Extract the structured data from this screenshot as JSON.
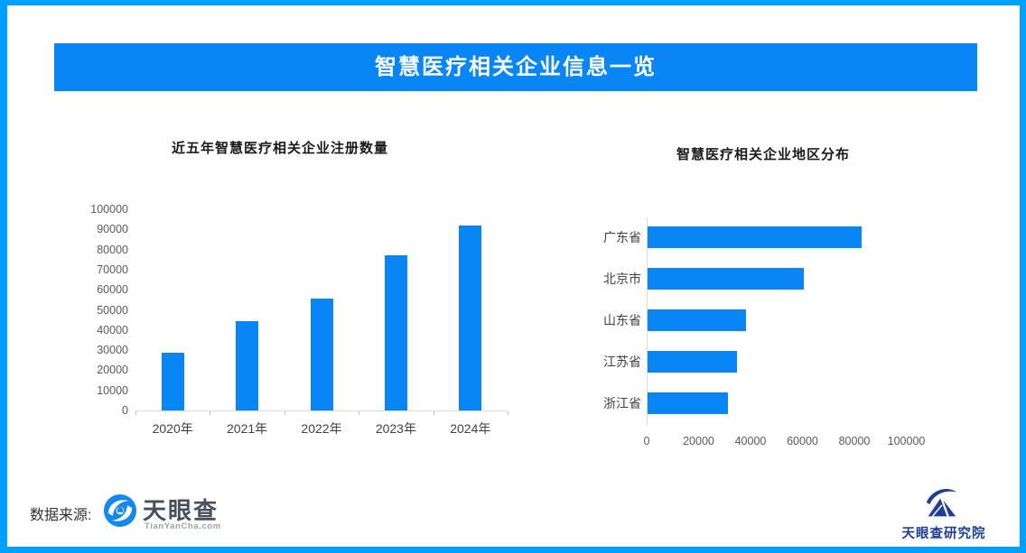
{
  "page": {
    "banner_title": "智慧医疗相关企业信息一览",
    "border_color": "#00A0FF",
    "accent_blue": "#0886F6"
  },
  "chart_data": [
    {
      "type": "bar",
      "title": "近五年智慧医疗相关企业注册数量",
      "categories": [
        "2020年",
        "2021年",
        "2022年",
        "2023年",
        "2024年"
      ],
      "values": [
        28700,
        44300,
        55600,
        77000,
        92000
      ],
      "ylim": [
        0,
        100000
      ],
      "yticks": [
        0,
        10000,
        20000,
        30000,
        40000,
        50000,
        60000,
        70000,
        80000,
        90000,
        100000
      ],
      "bar_color": "#0886F6",
      "grid": false,
      "legend": "none"
    },
    {
      "type": "bar-horizontal",
      "title": "智慧医疗相关企业地区分布",
      "categories": [
        "广东省",
        "北京市",
        "山东省",
        "江苏省",
        "浙江省"
      ],
      "values": [
        82500,
        60300,
        38000,
        34500,
        31000
      ],
      "xlim": [
        0,
        100000
      ],
      "xticks": [
        0,
        20000,
        40000,
        60000,
        80000,
        100000
      ],
      "bar_color": "#0886F6",
      "grid": false,
      "legend": "none"
    }
  ],
  "footer": {
    "source_label": "数据来源:",
    "tianyancha_text": "天眼查",
    "tianyancha_sub": "TianYanCha.com",
    "research_text": "天眼查研究院"
  }
}
